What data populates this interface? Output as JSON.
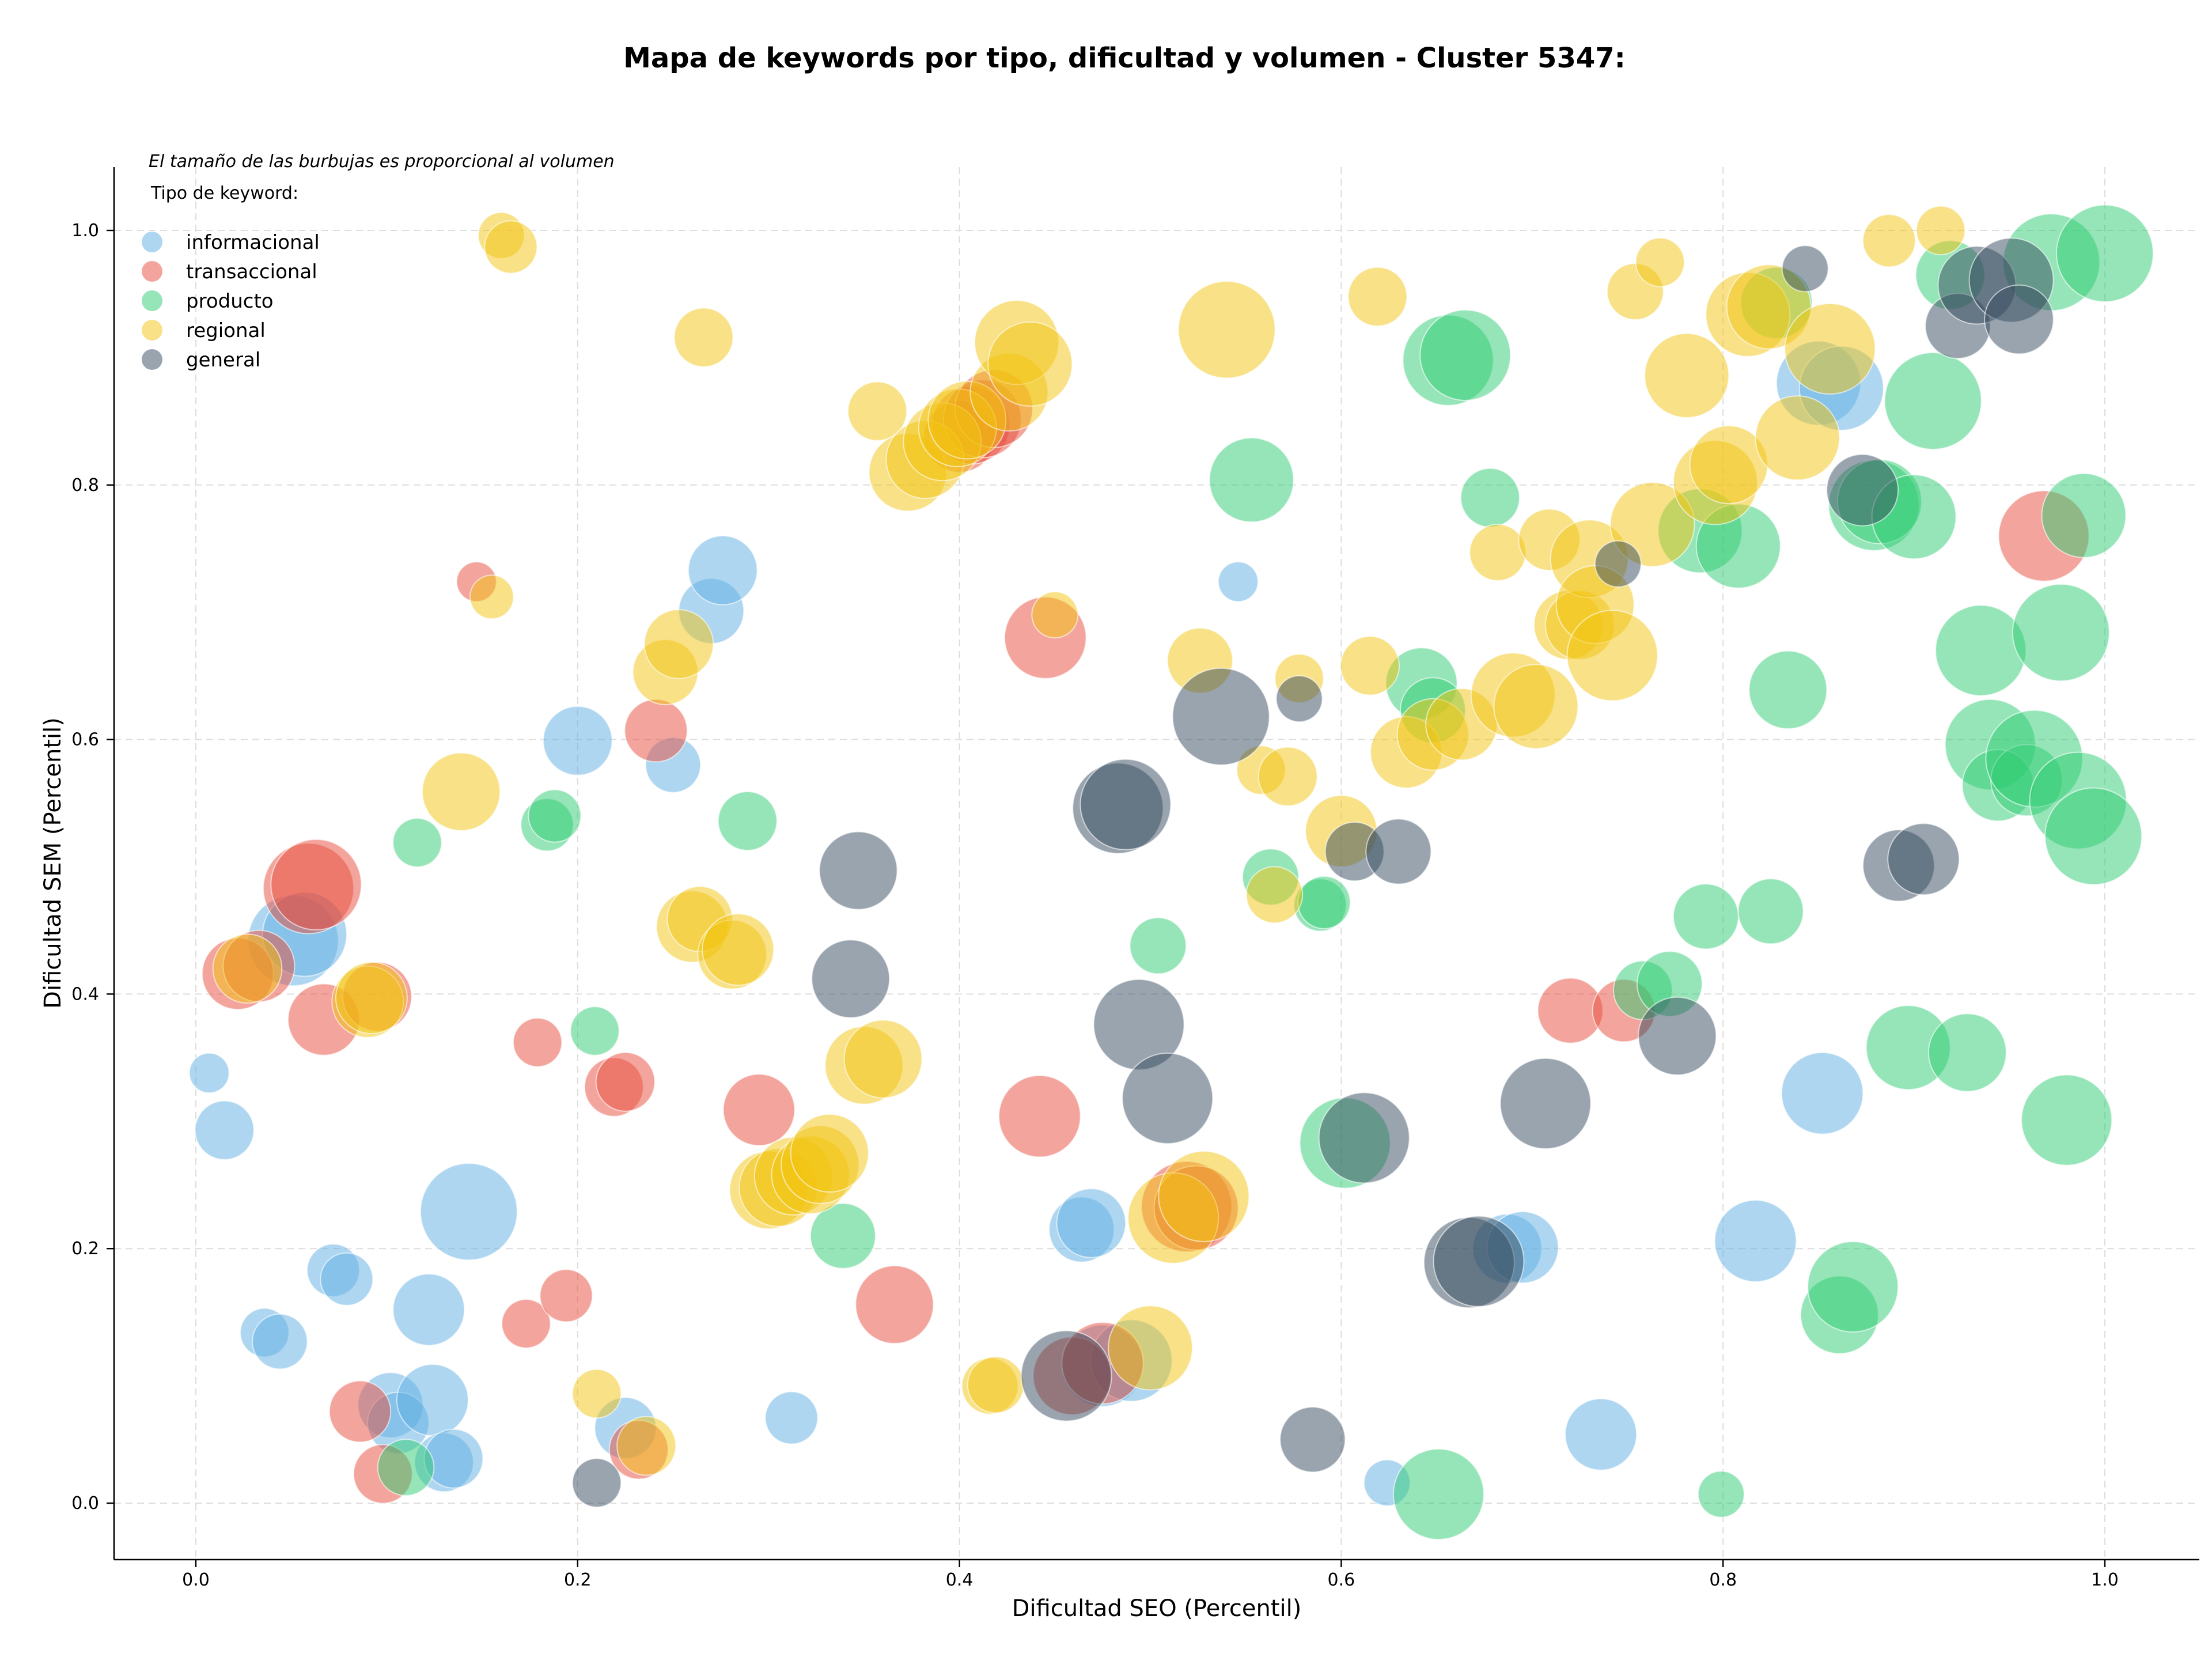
{
  "chart_data": {
    "type": "scatter",
    "title": "Mapa de keywords por tipo, dificultad y volumen - Cluster 5347:",
    "xlabel": "Dificultad SEO (Percentil)",
    "ylabel": "Dificultad SEM (Percentil)",
    "xlim": [
      -0.04,
      1.05
    ],
    "ylim": [
      -0.04,
      1.05
    ],
    "xticks": [
      "0.0",
      "0.2",
      "0.4",
      "0.6",
      "0.8",
      "1.0"
    ],
    "yticks": [
      "0.0",
      "0.2",
      "0.4",
      "0.6",
      "0.8",
      "1.0"
    ],
    "grid": true,
    "grid_style": "dashed",
    "legend_placement": "top-left",
    "legend_title": "Tipo de keyword:",
    "note": "El tamaño de las burbujas es proporcional al volumen",
    "series": [
      {
        "name": "informacional",
        "color": "#5DADE2",
        "points": [
          [
            0.007,
            0.338,
            0.15
          ],
          [
            0.015,
            0.293,
            0.3
          ],
          [
            0.036,
            0.134,
            0.22
          ],
          [
            0.044,
            0.127,
            0.27
          ],
          [
            0.051,
            0.442,
            0.55
          ],
          [
            0.057,
            0.447,
            0.5
          ],
          [
            0.072,
            0.183,
            0.25
          ],
          [
            0.079,
            0.176,
            0.25
          ],
          [
            0.102,
            0.077,
            0.35
          ],
          [
            0.106,
            0.063,
            0.32
          ],
          [
            0.122,
            0.152,
            0.4
          ],
          [
            0.124,
            0.081,
            0.4
          ],
          [
            0.13,
            0.032,
            0.3
          ],
          [
            0.135,
            0.035,
            0.3
          ],
          [
            0.143,
            0.229,
            0.6
          ],
          [
            0.2,
            0.599,
            0.38
          ],
          [
            0.225,
            0.059,
            0.32
          ],
          [
            0.25,
            0.58,
            0.27
          ],
          [
            0.27,
            0.701,
            0.35
          ],
          [
            0.276,
            0.733,
            0.38
          ],
          [
            0.312,
            0.067,
            0.25
          ],
          [
            0.464,
            0.215,
            0.35
          ],
          [
            0.469,
            0.22,
            0.38
          ],
          [
            0.475,
            0.108,
            0.48
          ],
          [
            0.49,
            0.112,
            0.48
          ],
          [
            0.546,
            0.724,
            0.15
          ],
          [
            0.624,
            0.016,
            0.2
          ],
          [
            0.687,
            0.2,
            0.38
          ],
          [
            0.695,
            0.201,
            0.4
          ],
          [
            0.736,
            0.054,
            0.4
          ],
          [
            0.817,
            0.206,
            0.48
          ],
          [
            0.852,
            0.322,
            0.48
          ],
          [
            0.85,
            0.88,
            0.5
          ],
          [
            0.862,
            0.876,
            0.5
          ]
        ]
      },
      {
        "name": "transaccional",
        "color": "#E74C3C",
        "points": [
          [
            0.022,
            0.416,
            0.4
          ],
          [
            0.033,
            0.422,
            0.4
          ],
          [
            0.059,
            0.483,
            0.55
          ],
          [
            0.063,
            0.486,
            0.55
          ],
          [
            0.067,
            0.38,
            0.4
          ],
          [
            0.086,
            0.072,
            0.32
          ],
          [
            0.095,
            0.398,
            0.38
          ],
          [
            0.098,
            0.023,
            0.3
          ],
          [
            0.147,
            0.724,
            0.15
          ],
          [
            0.173,
            0.141,
            0.22
          ],
          [
            0.179,
            0.362,
            0.22
          ],
          [
            0.194,
            0.163,
            0.25
          ],
          [
            0.219,
            0.327,
            0.3
          ],
          [
            0.225,
            0.331,
            0.3
          ],
          [
            0.232,
            0.042,
            0.3
          ],
          [
            0.241,
            0.607,
            0.33
          ],
          [
            0.295,
            0.309,
            0.4
          ],
          [
            0.366,
            0.156,
            0.45
          ],
          [
            0.4,
            0.838,
            0.4
          ],
          [
            0.406,
            0.847,
            0.45
          ],
          [
            0.412,
            0.852,
            0.45
          ],
          [
            0.418,
            0.86,
            0.45
          ],
          [
            0.442,
            0.304,
            0.48
          ],
          [
            0.445,
            0.68,
            0.48
          ],
          [
            0.459,
            0.1,
            0.45
          ],
          [
            0.475,
            0.11,
            0.48
          ],
          [
            0.519,
            0.233,
            0.55
          ],
          [
            0.524,
            0.232,
            0.5
          ],
          [
            0.72,
            0.387,
            0.35
          ],
          [
            0.748,
            0.387,
            0.33
          ],
          [
            0.968,
            0.76,
            0.55
          ]
        ]
      },
      {
        "name": "producto",
        "color": "#2ECC71",
        "points": [
          [
            0.11,
            0.028,
            0.28
          ],
          [
            0.116,
            0.519,
            0.22
          ],
          [
            0.184,
            0.533,
            0.25
          ],
          [
            0.188,
            0.54,
            0.25
          ],
          [
            0.209,
            0.371,
            0.22
          ],
          [
            0.289,
            0.536,
            0.3
          ],
          [
            0.339,
            0.21,
            0.35
          ],
          [
            0.504,
            0.438,
            0.28
          ],
          [
            0.553,
            0.804,
            0.5
          ],
          [
            0.563,
            0.492,
            0.28
          ],
          [
            0.589,
            0.47,
            0.25
          ],
          [
            0.591,
            0.472,
            0.25
          ],
          [
            0.602,
            0.283,
            0.55
          ],
          [
            0.642,
            0.644,
            0.4
          ],
          [
            0.648,
            0.623,
            0.35
          ],
          [
            0.651,
            0.007,
            0.55
          ],
          [
            0.656,
            0.898,
            0.55
          ],
          [
            0.665,
            0.902,
            0.55
          ],
          [
            0.678,
            0.79,
            0.3
          ],
          [
            0.758,
            0.403,
            0.3
          ],
          [
            0.772,
            0.408,
            0.35
          ],
          [
            0.788,
            0.764,
            0.5
          ],
          [
            0.791,
            0.461,
            0.35
          ],
          [
            0.799,
            0.007,
            0.2
          ],
          [
            0.808,
            0.752,
            0.5
          ],
          [
            0.825,
            0.465,
            0.35
          ],
          [
            0.828,
            0.943,
            0.4
          ],
          [
            0.834,
            0.639,
            0.45
          ],
          [
            0.861,
            0.148,
            0.45
          ],
          [
            0.868,
            0.17,
            0.55
          ],
          [
            0.879,
            0.784,
            0.55
          ],
          [
            0.882,
            0.787,
            0.5
          ],
          [
            0.897,
            0.358,
            0.5
          ],
          [
            0.9,
            0.775,
            0.5
          ],
          [
            0.91,
            0.866,
            0.6
          ],
          [
            0.919,
            0.965,
            0.38
          ],
          [
            0.928,
            0.354,
            0.45
          ],
          [
            0.935,
            0.67,
            0.55
          ],
          [
            0.94,
            0.596,
            0.55
          ],
          [
            0.944,
            0.564,
            0.4
          ],
          [
            0.959,
            0.568,
            0.4
          ],
          [
            0.963,
            0.585,
            0.6
          ],
          [
            0.972,
            0.975,
            0.6
          ],
          [
            0.977,
            0.684,
            0.6
          ],
          [
            0.98,
            0.301,
            0.55
          ],
          [
            0.986,
            0.552,
            0.6
          ],
          [
            0.989,
            0.776,
            0.5
          ],
          [
            0.994,
            0.524,
            0.6
          ],
          [
            1.0,
            0.982,
            0.6
          ]
        ]
      },
      {
        "name": "regional",
        "color": "#F1C40F",
        "points": [
          [
            0.027,
            0.42,
            0.38
          ],
          [
            0.09,
            0.394,
            0.4
          ],
          [
            0.092,
            0.397,
            0.4
          ],
          [
            0.16,
            0.996,
            0.2
          ],
          [
            0.165,
            0.987,
            0.25
          ],
          [
            0.155,
            0.712,
            0.18
          ],
          [
            0.139,
            0.559,
            0.45
          ],
          [
            0.21,
            0.086,
            0.22
          ],
          [
            0.236,
            0.045,
            0.3
          ],
          [
            0.246,
            0.653,
            0.35
          ],
          [
            0.253,
            0.675,
            0.38
          ],
          [
            0.26,
            0.453,
            0.4
          ],
          [
            0.264,
            0.459,
            0.35
          ],
          [
            0.266,
            0.916,
            0.3
          ],
          [
            0.281,
            0.431,
            0.38
          ],
          [
            0.284,
            0.435,
            0.4
          ],
          [
            0.3,
            0.246,
            0.45
          ],
          [
            0.305,
            0.248,
            0.45
          ],
          [
            0.313,
            0.257,
            0.45
          ],
          [
            0.322,
            0.258,
            0.45
          ],
          [
            0.327,
            0.266,
            0.45
          ],
          [
            0.332,
            0.275,
            0.45
          ],
          [
            0.35,
            0.344,
            0.45
          ],
          [
            0.36,
            0.349,
            0.45
          ],
          [
            0.357,
            0.858,
            0.3
          ],
          [
            0.373,
            0.81,
            0.45
          ],
          [
            0.382,
            0.82,
            0.45
          ],
          [
            0.391,
            0.834,
            0.45
          ],
          [
            0.399,
            0.845,
            0.45
          ],
          [
            0.404,
            0.851,
            0.45
          ],
          [
            0.416,
            0.092,
            0.28
          ],
          [
            0.419,
            0.093,
            0.28
          ],
          [
            0.426,
            0.873,
            0.45
          ],
          [
            0.43,
            0.912,
            0.5
          ],
          [
            0.437,
            0.895,
            0.5
          ],
          [
            0.45,
            0.698,
            0.2
          ],
          [
            0.5,
            0.122,
            0.5
          ],
          [
            0.512,
            0.224,
            0.55
          ],
          [
            0.528,
            0.241,
            0.55
          ],
          [
            0.526,
            0.662,
            0.35
          ],
          [
            0.54,
            0.922,
            0.6
          ],
          [
            0.558,
            0.576,
            0.22
          ],
          [
            0.565,
            0.478,
            0.28
          ],
          [
            0.572,
            0.571,
            0.3
          ],
          [
            0.578,
            0.648,
            0.22
          ],
          [
            0.6,
            0.528,
            0.4
          ],
          [
            0.615,
            0.658,
            0.3
          ],
          [
            0.619,
            0.948,
            0.3
          ],
          [
            0.634,
            0.59,
            0.4
          ],
          [
            0.648,
            0.604,
            0.4
          ],
          [
            0.663,
            0.612,
            0.4
          ],
          [
            0.682,
            0.747,
            0.28
          ],
          [
            0.69,
            0.635,
            0.5
          ],
          [
            0.702,
            0.626,
            0.5
          ],
          [
            0.709,
            0.757,
            0.32
          ],
          [
            0.719,
            0.69,
            0.38
          ],
          [
            0.725,
            0.69,
            0.38
          ],
          [
            0.73,
            0.742,
            0.45
          ],
          [
            0.733,
            0.706,
            0.45
          ],
          [
            0.742,
            0.666,
            0.55
          ],
          [
            0.754,
            0.952,
            0.28
          ],
          [
            0.767,
            0.975,
            0.22
          ],
          [
            0.763,
            0.769,
            0.5
          ],
          [
            0.781,
            0.886,
            0.5
          ],
          [
            0.796,
            0.802,
            0.5
          ],
          [
            0.803,
            0.816,
            0.45
          ],
          [
            0.813,
            0.934,
            0.5
          ],
          [
            0.824,
            0.94,
            0.5
          ],
          [
            0.839,
            0.837,
            0.5
          ],
          [
            0.856,
            0.907,
            0.55
          ],
          [
            0.887,
            0.992,
            0.25
          ],
          [
            0.914,
            1.0,
            0.22
          ]
        ]
      },
      {
        "name": "general",
        "color": "#34495E",
        "points": [
          [
            0.21,
            0.016,
            0.22
          ],
          [
            0.347,
            0.497,
            0.45
          ],
          [
            0.343,
            0.412,
            0.45
          ],
          [
            0.456,
            0.1,
            0.55
          ],
          [
            0.483,
            0.546,
            0.55
          ],
          [
            0.487,
            0.549,
            0.55
          ],
          [
            0.494,
            0.376,
            0.55
          ],
          [
            0.509,
            0.318,
            0.55
          ],
          [
            0.537,
            0.618,
            0.6
          ],
          [
            0.578,
            0.632,
            0.2
          ],
          [
            0.585,
            0.05,
            0.35
          ],
          [
            0.607,
            0.512,
            0.3
          ],
          [
            0.63,
            0.512,
            0.35
          ],
          [
            0.612,
            0.287,
            0.55
          ],
          [
            0.667,
            0.189,
            0.55
          ],
          [
            0.672,
            0.19,
            0.55
          ],
          [
            0.707,
            0.314,
            0.55
          ],
          [
            0.745,
            0.738,
            0.2
          ],
          [
            0.776,
            0.367,
            0.45
          ],
          [
            0.843,
            0.97,
            0.2
          ],
          [
            0.873,
            0.796,
            0.4
          ],
          [
            0.892,
            0.501,
            0.4
          ],
          [
            0.905,
            0.506,
            0.4
          ],
          [
            0.923,
            0.925,
            0.35
          ],
          [
            0.933,
            0.957,
            0.45
          ],
          [
            0.951,
            0.961,
            0.5
          ],
          [
            0.955,
            0.93,
            0.38
          ]
        ]
      }
    ]
  }
}
